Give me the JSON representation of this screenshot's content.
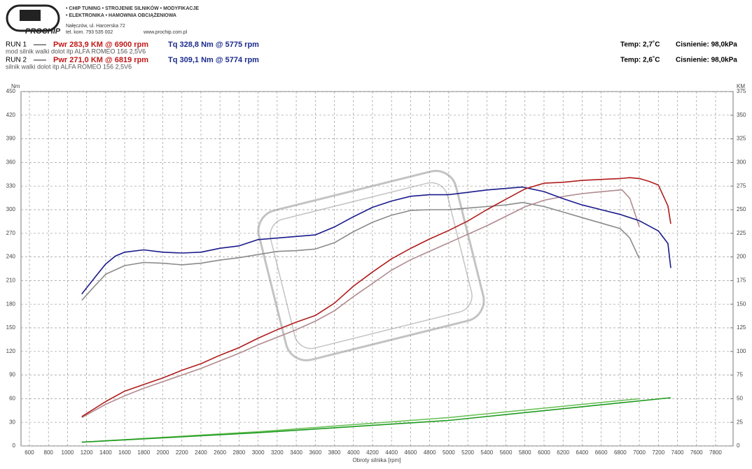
{
  "header": {
    "brand": "PROCHIP",
    "services": [
      "• CHIP TUNING • STROJENIE SILNIKÓW • MODYFIKACJE",
      "• ELEKTRONIKA • HAMOWNIA OBCIĄŻENIOWA"
    ],
    "address": "Nałęczów, ul. Harcerska 72",
    "phone": "tel. kom. 793 535 002",
    "website": "www.prochip.com.pl",
    "runs": [
      {
        "label": "RUN 1",
        "power": "Pwr  283,9 KM @ 6900 rpm",
        "torque": "Tq 328,8 Nm @ 5775 rpm",
        "temp": "Temp: 2,7˚C",
        "pressure": "Cisnienie: 98,0kPa",
        "description": "mod silnik walki dolot itp ALFA ROMEO 156 2,5V6"
      },
      {
        "label": "RUN 2",
        "power": "Pwr  271,0 KM @ 6819 rpm",
        "torque": "Tq 309,1 Nm @ 5774 rpm",
        "temp": "Temp: 2,6˚C",
        "pressure": "Cisnienie: 98,0kPa",
        "description": "silnik walki dolot itp ALFA ROMEO 156 2,5V6"
      }
    ]
  },
  "chart_data": {
    "type": "line",
    "y_label": "Nm",
    "y2_label": "KM",
    "x_label": "Obroty silnika [rpm]",
    "xlim": [
      512,
      7984
    ],
    "xticks": [
      600,
      800,
      1000,
      1200,
      1400,
      1600,
      1800,
      2000,
      2200,
      2400,
      2600,
      2800,
      3000,
      3200,
      3400,
      3600,
      3800,
      4000,
      4200,
      4400,
      4600,
      4800,
      5000,
      5200,
      5400,
      5600,
      5800,
      6000,
      6200,
      6400,
      6600,
      6800,
      7000,
      7200,
      7400,
      7600,
      7800
    ],
    "ylim": [
      0,
      450
    ],
    "yticks": [
      0,
      30,
      60,
      90,
      120,
      150,
      180,
      210,
      240,
      270,
      300,
      330,
      360,
      390,
      420,
      450
    ],
    "y2lim": [
      0,
      375
    ],
    "y2ticks": [
      0,
      25,
      50,
      75,
      100,
      125,
      150,
      175,
      200,
      225,
      250,
      275,
      300,
      325,
      350,
      375
    ],
    "grid": true,
    "series": [
      {
        "color": "#8a8a8a",
        "axis": "y",
        "x": [
          1150,
          1300,
          1400,
          1600,
          1800,
          2000,
          2200,
          2400,
          2600,
          2800,
          3000,
          3200,
          3400,
          3600,
          3800,
          4000,
          4200,
          4400,
          4600,
          4800,
          5000,
          5200,
          5400,
          5600,
          5774,
          6000,
          6200,
          6400,
          6600,
          6800,
          6900,
          7000
        ],
        "values": [
          185,
          205,
          218,
          229,
          233,
          232,
          230,
          232,
          236,
          239,
          243,
          247,
          248,
          250,
          258,
          272,
          284,
          293,
          299,
          300,
          300,
          302,
          304,
          306,
          309.1,
          304,
          297,
          290,
          283,
          276,
          264,
          238
        ]
      },
      {
        "color": "#b08a8e",
        "axis": "y2",
        "x": [
          1150,
          1400,
          1600,
          1800,
          2000,
          2200,
          2400,
          2600,
          2800,
          3000,
          3200,
          3400,
          3600,
          3800,
          4000,
          4200,
          4400,
          4600,
          4800,
          5000,
          5200,
          5400,
          5600,
          5800,
          6000,
          6200,
          6400,
          6600,
          6819,
          6900,
          7000
        ],
        "values": [
          30,
          44,
          53,
          61,
          68,
          75,
          82,
          90,
          98,
          107,
          115,
          123,
          132,
          143,
          158,
          172,
          186,
          197,
          206,
          215,
          224,
          233,
          243,
          253,
          260,
          264,
          267,
          269,
          271.0,
          262,
          232
        ]
      },
      {
        "color": "#1a1a8c",
        "axis": "y",
        "x": [
          1150,
          1300,
          1400,
          1500,
          1600,
          1800,
          2000,
          2200,
          2400,
          2600,
          2800,
          3000,
          3200,
          3400,
          3600,
          3800,
          4000,
          4200,
          4400,
          4600,
          4800,
          5000,
          5200,
          5400,
          5600,
          5775,
          6000,
          6200,
          6400,
          6600,
          6800,
          7000,
          7200,
          7300,
          7330
        ],
        "values": [
          193,
          216,
          231,
          241,
          246,
          249,
          246,
          245,
          246,
          251,
          254,
          262,
          264,
          266,
          268,
          278,
          291,
          303,
          311,
          317,
          319,
          319,
          322,
          325,
          327,
          328.8,
          323,
          314,
          306,
          300,
          294,
          286,
          273,
          257,
          226
        ]
      },
      {
        "color": "#b01c1c",
        "axis": "y2",
        "x": [
          1150,
          1400,
          1600,
          1800,
          2000,
          2200,
          2400,
          2600,
          2800,
          3000,
          3200,
          3400,
          3600,
          3800,
          4000,
          4200,
          4400,
          4600,
          4800,
          5000,
          5200,
          5400,
          5600,
          5800,
          6000,
          6200,
          6400,
          6600,
          6800,
          6900,
          7000,
          7100,
          7200,
          7300,
          7330
        ],
        "values": [
          31,
          47,
          58,
          65,
          72,
          80,
          87,
          96,
          104,
          114,
          123,
          131,
          138,
          151,
          169,
          184,
          198,
          209,
          219,
          228,
          238,
          250,
          261,
          272,
          278,
          279,
          281,
          282,
          283,
          283.9,
          283,
          280,
          276,
          254,
          235
        ]
      },
      {
        "color": "#6cc25a",
        "axis": "y2",
        "x": [
          1150,
          3000,
          5000,
          7000
        ],
        "values": [
          4,
          15,
          30,
          50
        ]
      },
      {
        "color": "#1e9a1e",
        "axis": "y2",
        "x": [
          1150,
          3000,
          5000,
          7330
        ],
        "values": [
          4,
          14,
          27,
          51
        ]
      }
    ]
  }
}
